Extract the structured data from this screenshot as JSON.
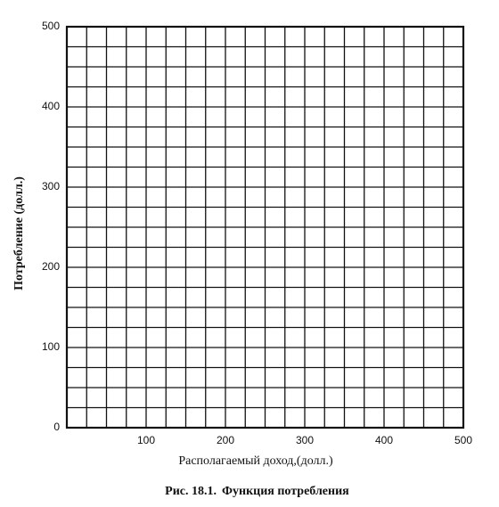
{
  "chart_data": {
    "type": "line",
    "x_label": "Располагаемый доход,(долл.)",
    "y_label": "Потребление (долл.)",
    "caption_label": "Рис. 18.1.",
    "caption": "Функция потребления",
    "series": [],
    "xlim": [
      0,
      500
    ],
    "ylim": [
      0,
      500
    ],
    "xticks": [
      100,
      200,
      300,
      400,
      500
    ],
    "yticks": [
      0,
      100,
      200,
      300,
      400,
      500
    ],
    "xgrid": [
      0,
      25,
      50,
      75,
      100,
      125,
      150,
      175,
      200,
      225,
      250,
      275,
      300,
      325,
      350,
      375,
      400,
      425,
      450,
      475,
      500
    ],
    "ygrid": [
      0,
      25,
      50,
      75,
      100,
      125,
      150,
      175,
      200,
      225,
      250,
      275,
      300,
      325,
      350,
      375,
      400,
      425,
      450,
      475,
      500
    ],
    "grid": true
  }
}
